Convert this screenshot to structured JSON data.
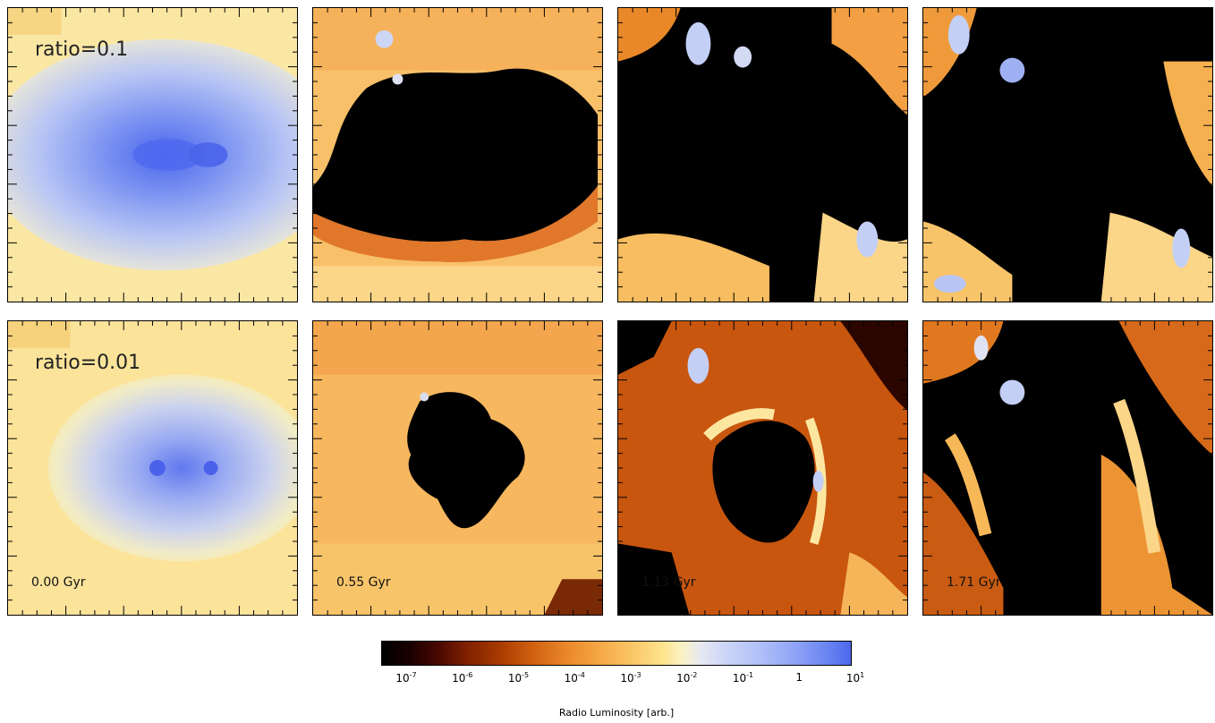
{
  "rows": [
    {
      "ratio_label": "ratio=0.1",
      "panels": [
        {
          "time_label": "",
          "palette": "blue-core"
        },
        {
          "time_label": "",
          "palette": "hot"
        },
        {
          "time_label": "",
          "palette": "hot"
        },
        {
          "time_label": "",
          "palette": "hot"
        }
      ]
    },
    {
      "ratio_label": "ratio=0.01",
      "panels": [
        {
          "time_label": "0.00 Gyr",
          "palette": "blue-core"
        },
        {
          "time_label": "0.55 Gyr",
          "palette": "hot"
        },
        {
          "time_label": "1.13 Gyr",
          "palette": "hot"
        },
        {
          "time_label": "1.71 Gyr",
          "palette": "hot"
        }
      ]
    }
  ],
  "colorbar": {
    "label": "Radio Luminosity  [arb.]",
    "ticks": [
      {
        "base": "10",
        "exp": "-7"
      },
      {
        "base": "10",
        "exp": "-6"
      },
      {
        "base": "10",
        "exp": "-5"
      },
      {
        "base": "10",
        "exp": "-4"
      },
      {
        "base": "10",
        "exp": "-3"
      },
      {
        "base": "10",
        "exp": "-2"
      },
      {
        "base": "10",
        "exp": "-1"
      },
      {
        "base": "1",
        "exp": ""
      },
      {
        "base": "10",
        "exp": "1"
      }
    ],
    "colors": {
      "min": "#000000",
      "mid": "#f6aa48",
      "max": "#4c68ec"
    }
  }
}
